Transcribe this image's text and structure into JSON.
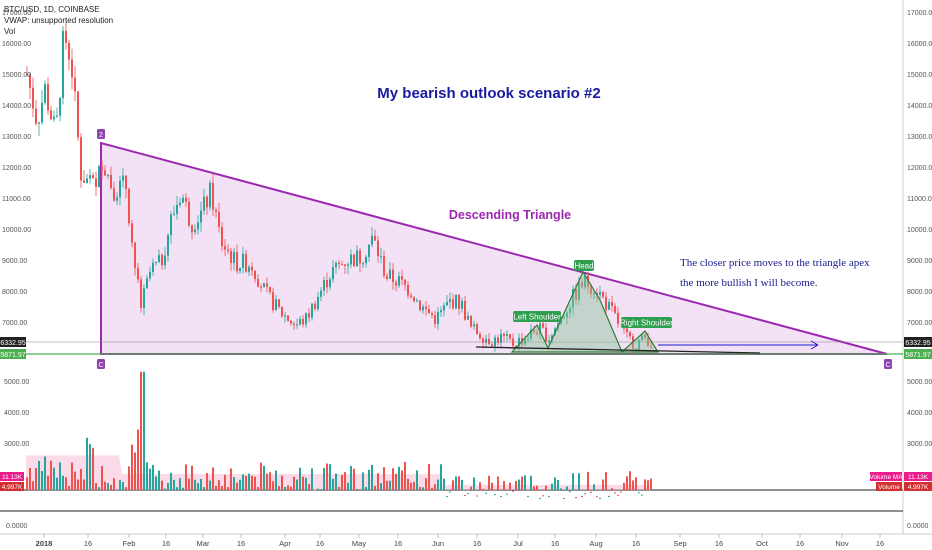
{
  "header": {
    "symbol": "BTC/USD, 1D, COINBASE",
    "vwap": "VWAP: unsupported resolution",
    "vol": "Vol"
  },
  "annotations": {
    "title": "My bearish outlook scenario #2",
    "pattern": "Descending Triangle",
    "note_line1": "The closer price moves to the triangle apex",
    "note_line2": "the more bullish I will become.",
    "left_shoulder": "Left Shoulder",
    "head": "Head",
    "right_shoulder": "Right Shoulder",
    "marker_a": "2",
    "marker_b": "C",
    "marker_c": "C",
    "marker_d": "C"
  },
  "price_axis": {
    "ticks": [
      "17000.00",
      "16000.00",
      "15000.00",
      "14000.00",
      "13000.00",
      "12000.00",
      "11000.00",
      "10000.00",
      "9000.00",
      "8000.00",
      "7000.00"
    ],
    "last_price": "6332.95",
    "support": "5871.97"
  },
  "volume_axis": {
    "ticks": [
      "5000.00",
      "4000.00",
      "3000.00"
    ],
    "ma_label": "Volume MA",
    "ma_value": "11.13K",
    "vol_label": "Volume",
    "vol_value": "4.997K",
    "zero": "0.0000"
  },
  "time_axis": [
    "2018",
    "16",
    "Feb",
    "16",
    "Mar",
    "16",
    "Apr",
    "16",
    "May",
    "16",
    "Jun",
    "16",
    "Jul",
    "16",
    "Aug",
    "16",
    "Sep",
    "16",
    "Oct",
    "16",
    "Nov",
    "16"
  ],
  "colors": {
    "up": "#26a69a",
    "down": "#ef5350",
    "triangle": "#9c27b0",
    "triangle_fill": "#e9c8ee",
    "title": "#1a1aa0",
    "note": "#1a1a8c",
    "support": "#4caf50",
    "label_green": "#2e9e4f"
  },
  "chart_data": {
    "type": "candlestick",
    "title": "",
    "x_dates": [
      "2018-01-01",
      "2018-01-16",
      "2018-02-01",
      "2018-02-16",
      "2018-03-01",
      "2018-03-16",
      "2018-04-01",
      "2018-04-16",
      "2018-05-01",
      "2018-05-16",
      "2018-06-01",
      "2018-06-16",
      "2018-07-01",
      "2018-07-16",
      "2018-08-01",
      "2018-08-16"
    ],
    "close_approx": [
      14000,
      11500,
      8500,
      10500,
      11000,
      8300,
      7000,
      8100,
      9200,
      8300,
      7500,
      6500,
      6400,
      7400,
      7600,
      6400
    ],
    "ylim": [
      6000,
      17000
    ],
    "triangle": {
      "top_date": "2018-01-17",
      "top_price": 12800,
      "base_price": 5880,
      "apex_date": "2018-11-16"
    },
    "support_level": 5871.97,
    "last_price": 6332.95
  }
}
